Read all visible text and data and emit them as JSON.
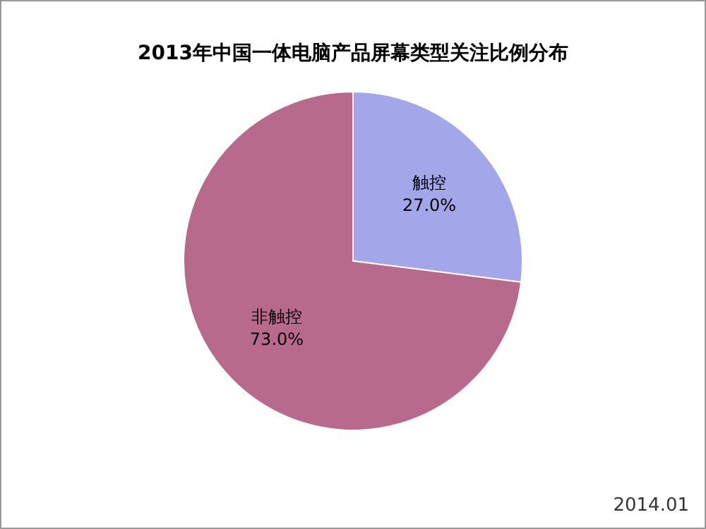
{
  "chart_data": {
    "type": "pie",
    "title": "2013年中国一体电脑产品屏幕类型关注比例分布",
    "categories": [
      "触控",
      "非触控"
    ],
    "values": [
      27.0,
      73.0
    ],
    "colors": [
      "#a4a6ea",
      "#b86a8c"
    ],
    "value_labels": [
      "27.0%",
      "73.0%"
    ],
    "annotations": [
      "2014.01"
    ]
  }
}
